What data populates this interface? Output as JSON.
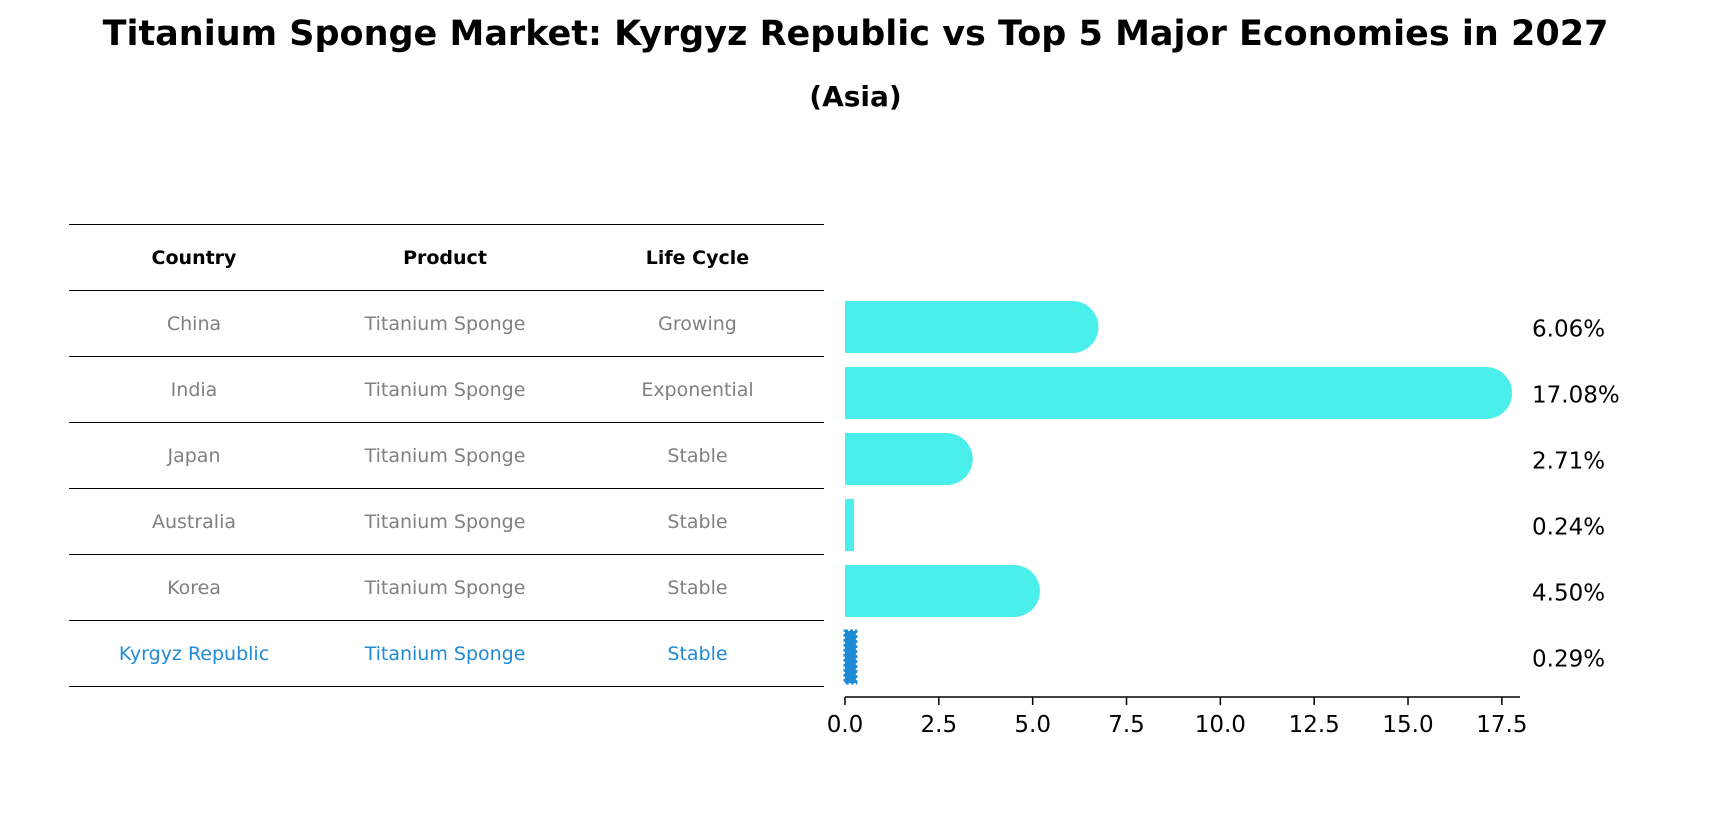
{
  "title": "Titanium Sponge Market: Kyrgyz Republic vs Top 5 Major Economies in 2027",
  "subtitle": "(Asia)",
  "table": {
    "headers": [
      "Country",
      "Product",
      "Life Cycle"
    ],
    "rows": [
      {
        "country": "China",
        "product": "Titanium Sponge",
        "life_cycle": "Growing"
      },
      {
        "country": "India",
        "product": "Titanium Sponge",
        "life_cycle": "Exponential"
      },
      {
        "country": "Japan",
        "product": "Titanium Sponge",
        "life_cycle": "Stable"
      },
      {
        "country": "Australia",
        "product": "Titanium Sponge",
        "life_cycle": "Stable"
      },
      {
        "country": "Korea",
        "product": "Titanium Sponge",
        "life_cycle": "Stable"
      },
      {
        "country": "Kyrgyz Republic",
        "product": "Titanium Sponge",
        "life_cycle": "Stable"
      }
    ]
  },
  "colors": {
    "bar": "#4aeeea",
    "highlight_bar": "#1f8ad6",
    "highlight_text": "#1f8ad6",
    "muted_text": "#808080"
  },
  "chart_data": {
    "type": "bar",
    "orientation": "horizontal",
    "categories": [
      "China",
      "India",
      "Japan",
      "Australia",
      "Korea",
      "Kyrgyz Republic"
    ],
    "values": [
      6.06,
      17.08,
      2.71,
      0.24,
      4.5,
      0.29
    ],
    "value_labels": [
      "6.06%",
      "17.08%",
      "2.71%",
      "0.24%",
      "4.50%",
      "0.29%"
    ],
    "highlight": "Kyrgyz Republic",
    "xlim": [
      0,
      17.93
    ],
    "xticks": [
      0.0,
      2.5,
      5.0,
      7.5,
      10.0,
      12.5,
      15.0,
      17.5
    ],
    "xtick_labels": [
      "0.0",
      "2.5",
      "5.0",
      "7.5",
      "10.0",
      "12.5",
      "15.0",
      "17.5"
    ],
    "xlabel": "",
    "ylabel": "",
    "grid": false
  }
}
